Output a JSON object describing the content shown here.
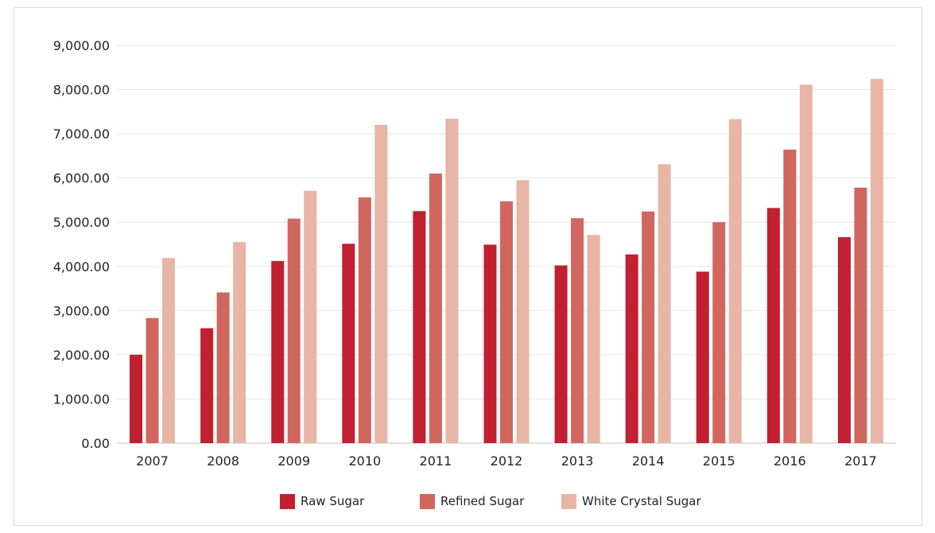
{
  "chart_data": {
    "type": "bar",
    "categories": [
      "2007",
      "2008",
      "2009",
      "2010",
      "2011",
      "2012",
      "2013",
      "2014",
      "2015",
      "2016",
      "2017"
    ],
    "series": [
      {
        "name": "Raw Sugar",
        "color": "#c0202f",
        "values": [
          2000,
          2600,
          4120,
          4510,
          5250,
          4490,
          4020,
          4270,
          3880,
          5320,
          4660
        ]
      },
      {
        "name": "Refined Sugar",
        "color": "#d0665e",
        "values": [
          2830,
          3410,
          5080,
          5560,
          6100,
          5470,
          5090,
          5240,
          5000,
          6640,
          5780
        ]
      },
      {
        "name": "White Crystal Sugar",
        "color": "#e8b4a5",
        "values": [
          4190,
          4550,
          5710,
          7200,
          7340,
          5950,
          4710,
          6310,
          7330,
          8110,
          8240
        ]
      }
    ],
    "ylim": [
      0,
      9000
    ],
    "yticks": [
      "0.00",
      "1,000.00",
      "2,000.00",
      "3,000.00",
      "4,000.00",
      "5,000.00",
      "6,000.00",
      "7,000.00",
      "8,000.00",
      "9,000.00"
    ],
    "title": "",
    "xlabel": "",
    "ylabel": "",
    "grid": true,
    "legend_position": "bottom"
  }
}
